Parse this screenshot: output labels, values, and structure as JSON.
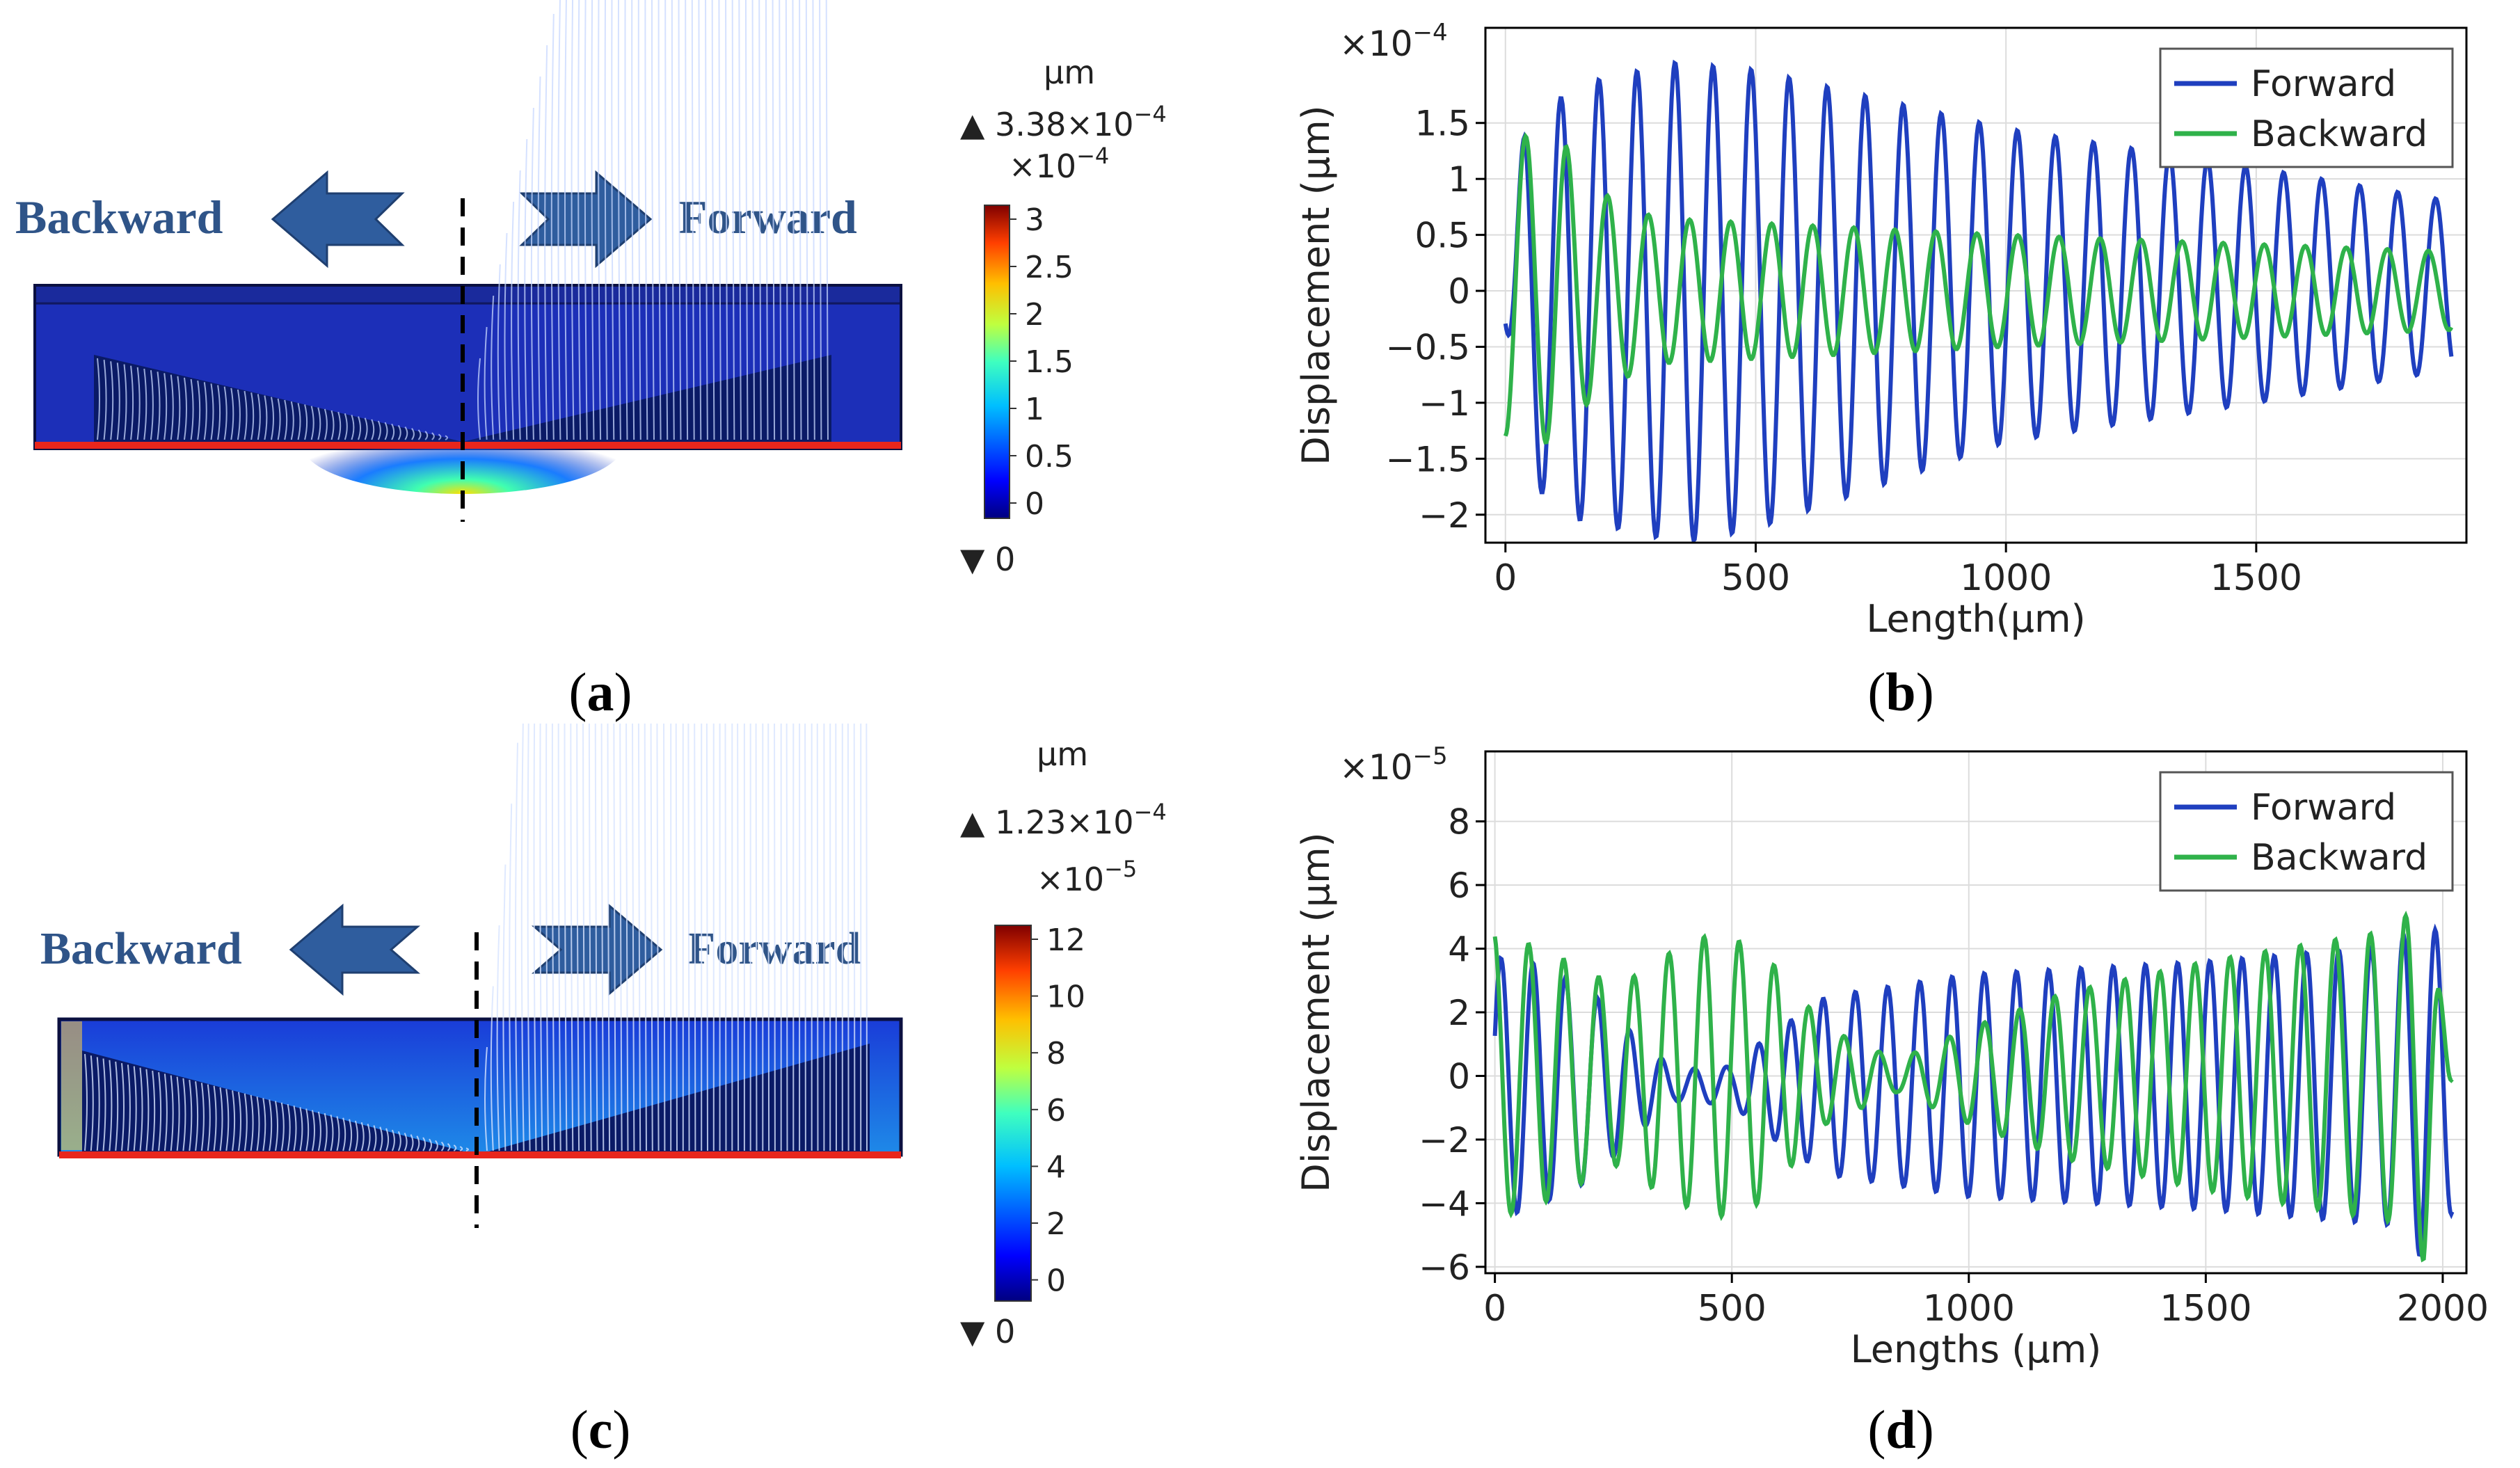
{
  "subfigure_labels": {
    "a": {
      "open": "(",
      "letter": "a",
      "close": ")"
    },
    "b": {
      "open": "(",
      "letter": "b",
      "close": ")"
    },
    "c": {
      "open": "(",
      "letter": "c",
      "close": ")"
    },
    "d": {
      "open": "(",
      "letter": "d",
      "close": ")"
    }
  },
  "panel_a": {
    "backward_label": "Backward",
    "forward_label": "Forward",
    "colorbar": {
      "unit": "µm",
      "max_label": "▲ 3.38×10",
      "max_exp": "−4",
      "scale_label": "×10",
      "scale_exp": "−4",
      "ticks": [
        "3",
        "2.5",
        "2",
        "1.5",
        "1",
        "0.5",
        "0"
      ],
      "min_label": "▼ 0"
    },
    "colors": {
      "arrow": "#2f5d9e",
      "label": "#2f5488",
      "substrate": "#1c2fb8",
      "edge": "#e8261c"
    }
  },
  "panel_c": {
    "backward_label": "Backward",
    "forward_label": "Forward",
    "colorbar": {
      "unit": "µm",
      "max_label": "▲ 1.23×10",
      "max_exp": "−4",
      "scale_label": "×10",
      "scale_exp": "−5",
      "ticks": [
        "12",
        "10",
        "8",
        "6",
        "4",
        "2",
        "0"
      ],
      "min_label": "▼ 0"
    }
  },
  "chart_data": [
    {
      "id": "b",
      "type": "line",
      "title": "",
      "xlabel": "Length(µm)",
      "ylabel": "Displacement (µm)",
      "y_multiplier": "×10",
      "y_multiplier_exp": "−4",
      "xlim": [
        -40,
        1920
      ],
      "ylim": [
        -2.25,
        2.35
      ],
      "xticks": [
        0,
        500,
        1000,
        1500
      ],
      "xtick_labels": [
        "0",
        "500",
        "1000",
        "1500"
      ],
      "yticks": [
        -2,
        -1.5,
        -1,
        -0.5,
        0,
        0.5,
        1,
        1.5
      ],
      "ytick_labels": [
        "−2",
        "−1.5",
        "−1",
        "−0.5",
        "0",
        "0.5",
        "1",
        "1.5"
      ],
      "grid": true,
      "legend": "top-right",
      "series": [
        {
          "name": "Forward",
          "color": "#1f3fbf",
          "wavelength_um": 76,
          "x_start": 0,
          "x_end": 1890,
          "envelope": [
            [
              0,
              0.2
            ],
            [
              40,
              1.6
            ],
            [
              150,
              1.95
            ],
            [
              350,
              2.15
            ],
            [
              500,
              2.05
            ],
            [
              1000,
              1.4
            ],
            [
              1500,
              1.05
            ],
            [
              1890,
              0.75
            ]
          ],
          "center_offset": [
            [
              0,
              -0.1
            ],
            [
              400,
              -0.1
            ],
            [
              1000,
              0.05
            ],
            [
              1890,
              0.05
            ]
          ],
          "phase": -1.3
        },
        {
          "name": "Backward",
          "color": "#2fb24a",
          "wavelength_um": 82,
          "x_start": 0,
          "x_end": 1890,
          "envelope": [
            [
              0,
              1.3
            ],
            [
              50,
              1.4
            ],
            [
              120,
              1.3
            ],
            [
              180,
              0.9
            ],
            [
              300,
              0.65
            ],
            [
              1000,
              0.5
            ],
            [
              1600,
              0.4
            ],
            [
              1890,
              0.35
            ]
          ],
          "center_offset": [
            [
              0,
              0
            ],
            [
              1890,
              0
            ]
          ],
          "phase": -1.5
        }
      ]
    },
    {
      "id": "d",
      "type": "line",
      "title": "",
      "xlabel": "Lengths (µm)",
      "ylabel": "Displacement (µm)",
      "y_multiplier": "×10",
      "y_multiplier_exp": "−5",
      "xlim": [
        -20,
        2050
      ],
      "ylim": [
        -6.2,
        10.2
      ],
      "xticks": [
        0,
        500,
        1000,
        1500,
        2000
      ],
      "xtick_labels": [
        "0",
        "500",
        "1000",
        "1500",
        "2000"
      ],
      "yticks": [
        -6,
        -4,
        -2,
        0,
        2,
        4,
        6,
        8
      ],
      "ytick_labels": [
        "−6",
        "−4",
        "−2",
        "0",
        "2",
        "4",
        "6",
        "8"
      ],
      "grid": true,
      "legend": "top-right",
      "series": [
        {
          "name": "Forward",
          "color": "#1f3fbf",
          "wavelength_um": 68,
          "x_start": 0,
          "x_end": 2020,
          "envelope": [
            [
              0,
              4.0
            ],
            [
              60,
              4.0
            ],
            [
              200,
              3.0
            ],
            [
              300,
              1.5
            ],
            [
              380,
              0.5
            ],
            [
              500,
              0.6
            ],
            [
              580,
              1.6
            ],
            [
              700,
              2.8
            ],
            [
              1000,
              3.5
            ],
            [
              1500,
              3.9
            ],
            [
              1900,
              4.4
            ],
            [
              1960,
              5.5
            ],
            [
              2020,
              4.0
            ]
          ],
          "center_offset": [
            [
              0,
              -0.3
            ],
            [
              2020,
              -0.3
            ]
          ],
          "phase": 0.4
        },
        {
          "name": "Backward",
          "color": "#2fb24a",
          "wavelength_um": 74,
          "x_start": 0,
          "x_end": 2020,
          "envelope": [
            [
              0,
              4.5
            ],
            [
              100,
              4.0
            ],
            [
              260,
              2.8
            ],
            [
              360,
              3.8
            ],
            [
              460,
              4.5
            ],
            [
              560,
              4.0
            ],
            [
              700,
              1.5
            ],
            [
              850,
              0.5
            ],
            [
              1000,
              1.5
            ],
            [
              1200,
              2.6
            ],
            [
              1500,
              3.6
            ],
            [
              1900,
              4.6
            ],
            [
              1960,
              5.8
            ],
            [
              2020,
              0.2
            ]
          ],
          "center_offset": [
            [
              0,
              0
            ],
            [
              2020,
              0
            ]
          ],
          "phase": 1.8
        }
      ]
    }
  ]
}
